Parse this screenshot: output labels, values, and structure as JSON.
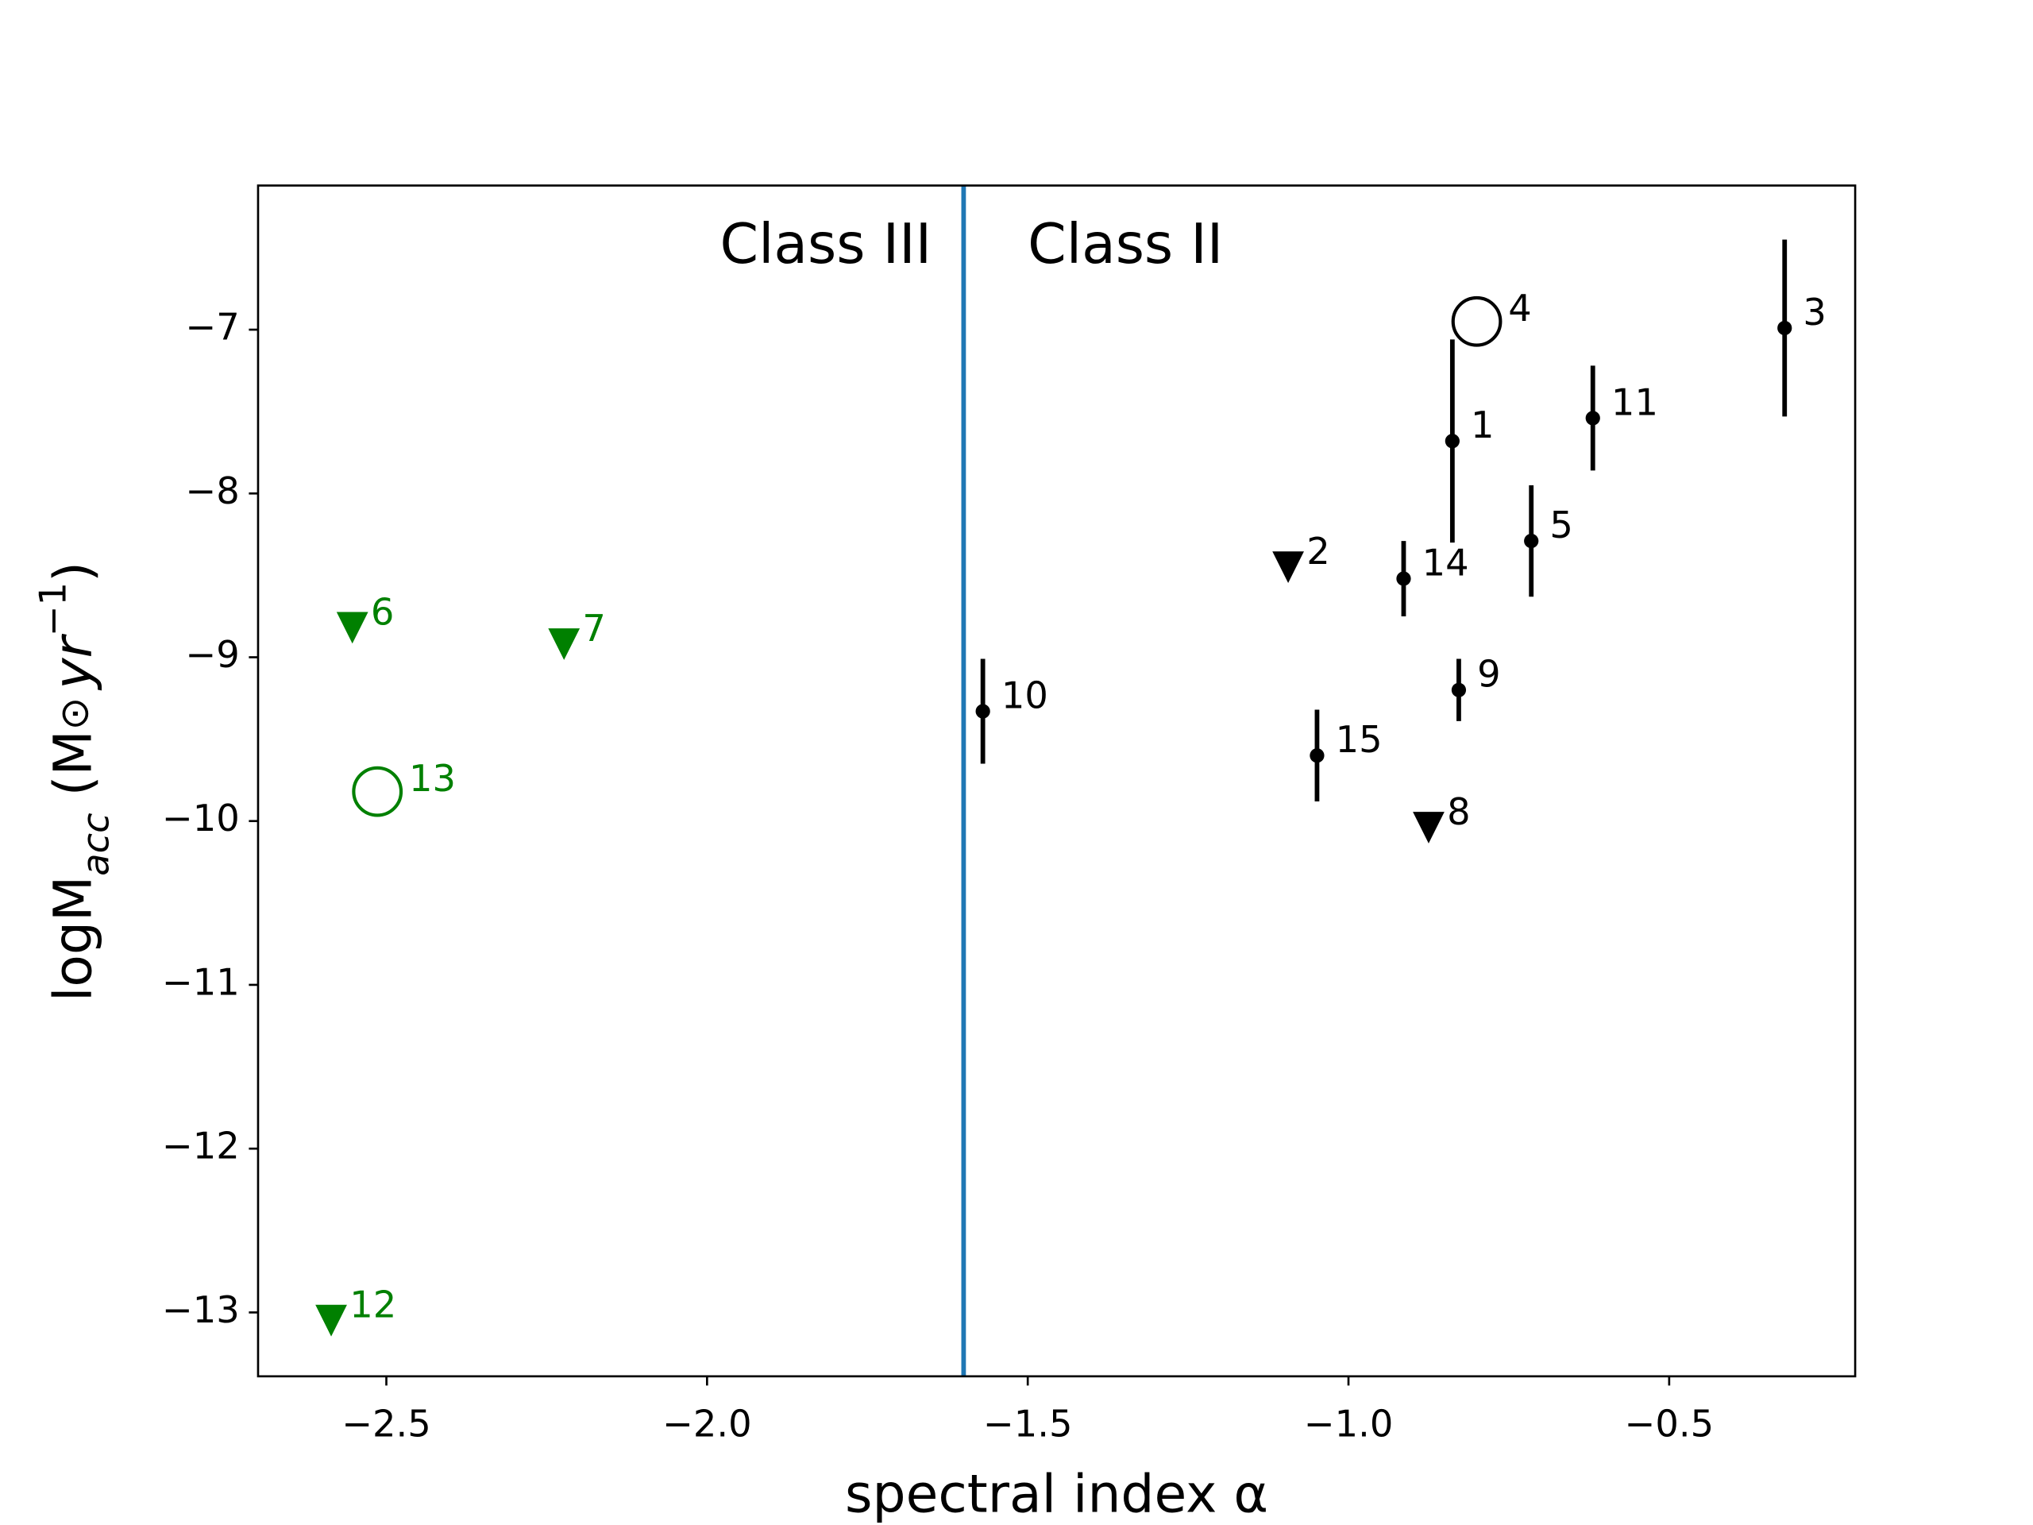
{
  "chart_data": {
    "type": "scatter",
    "xlabel": "spectral index α",
    "ylabel": [
      "logM",
      "acc",
      " (M",
      "⊙",
      "yr",
      "−1",
      ")"
    ],
    "xlim": [
      -2.7,
      -0.21
    ],
    "ylim": [
      -13.39,
      -6.12
    ],
    "xticks": [
      {
        "value": -2.5,
        "label": "−2.5"
      },
      {
        "value": -2.0,
        "label": "−2.0"
      },
      {
        "value": -1.5,
        "label": "−1.5"
      },
      {
        "value": -1.0,
        "label": "−1.0"
      },
      {
        "value": -0.5,
        "label": "−0.5"
      }
    ],
    "yticks": [
      {
        "value": -13,
        "label": "−13"
      },
      {
        "value": -12,
        "label": "−12"
      },
      {
        "value": -11,
        "label": "−11"
      },
      {
        "value": -10,
        "label": "−10"
      },
      {
        "value": -9,
        "label": "−9"
      },
      {
        "value": -8,
        "label": "−8"
      },
      {
        "value": -7,
        "label": "−7"
      }
    ],
    "vline": {
      "x": -1.6,
      "color": "#1f77b4"
    },
    "annotations": [
      {
        "text": "Class III",
        "x": -1.98,
        "y": -6.5
      },
      {
        "text": "Class II",
        "x": -1.5,
        "y": -6.5
      }
    ],
    "points": [
      {
        "label": "1",
        "x": -0.838,
        "y": -7.68,
        "err": 0.62,
        "marker": "dot",
        "color": "#000000"
      },
      {
        "label": "2",
        "x": -1.094,
        "y": -8.45,
        "marker": "triangle",
        "color": "#000000"
      },
      {
        "label": "3",
        "x": -0.32,
        "y": -6.99,
        "err": 0.54,
        "marker": "dot",
        "color": "#000000"
      },
      {
        "label": "4",
        "x": -0.8,
        "y": -6.95,
        "marker": "circle",
        "color": "#000000"
      },
      {
        "label": "5",
        "x": -0.715,
        "y": -8.29,
        "err": 0.34,
        "marker": "dot",
        "color": "#000000"
      },
      {
        "label": "6",
        "x": -2.553,
        "y": -8.82,
        "marker": "triangle",
        "color": "#008000"
      },
      {
        "label": "7",
        "x": -2.223,
        "y": -8.92,
        "marker": "triangle",
        "color": "#008000"
      },
      {
        "label": "8",
        "x": -0.875,
        "y": -10.04,
        "marker": "triangle",
        "color": "#000000"
      },
      {
        "label": "9",
        "x": -0.828,
        "y": -9.2,
        "err": 0.19,
        "marker": "dot",
        "color": "#000000"
      },
      {
        "label": "10",
        "x": -1.57,
        "y": -9.33,
        "err": 0.32,
        "marker": "dot",
        "color": "#000000"
      },
      {
        "label": "11",
        "x": -0.619,
        "y": -7.54,
        "err": 0.32,
        "marker": "dot",
        "color": "#000000"
      },
      {
        "label": "12",
        "x": -2.586,
        "y": -13.05,
        "marker": "triangle",
        "color": "#008000"
      },
      {
        "label": "13",
        "x": -2.514,
        "y": -9.82,
        "marker": "circle",
        "color": "#008000"
      },
      {
        "label": "14",
        "x": -0.914,
        "y": -8.52,
        "err": 0.23,
        "marker": "dot",
        "color": "#000000"
      },
      {
        "label": "15",
        "x": -1.049,
        "y": -9.6,
        "err": 0.28,
        "marker": "dot",
        "color": "#000000"
      }
    ]
  }
}
